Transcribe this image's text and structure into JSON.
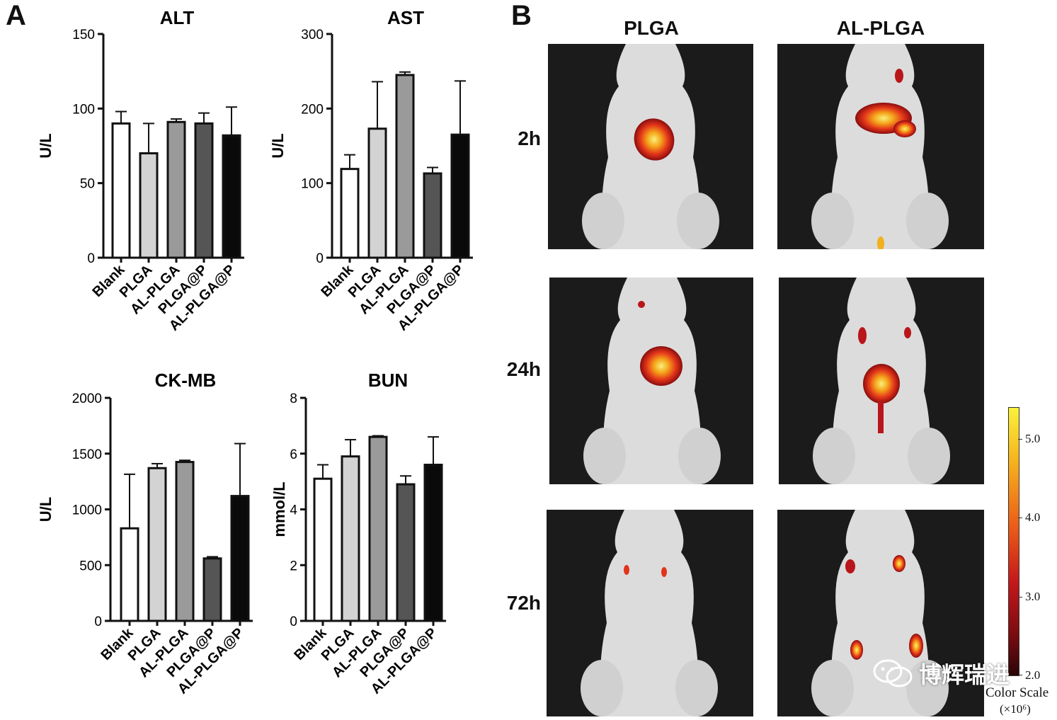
{
  "panel_labels": {
    "a": "A",
    "b": "B"
  },
  "chart_data": [
    {
      "type": "bar",
      "title": "ALT",
      "ylabel": "U/L",
      "categories": [
        "Blank",
        "PLGA",
        "AL-PLGA",
        "PLGA@P",
        "AL-PLGA@P"
      ],
      "values": [
        90,
        70,
        91,
        90,
        82
      ],
      "errors": [
        8,
        20,
        2,
        7,
        19
      ],
      "ylim": [
        0,
        150
      ],
      "yticks": [
        0,
        50,
        100,
        150
      ]
    },
    {
      "type": "bar",
      "title": "AST",
      "ylabel": "U/L",
      "categories": [
        "Blank",
        "PLGA",
        "AL-PLGA",
        "PLGA@P",
        "AL-PLGA@P"
      ],
      "values": [
        119,
        173,
        245,
        113,
        165
      ],
      "errors": [
        19,
        63,
        4,
        8,
        72
      ],
      "ylim": [
        0,
        300
      ],
      "yticks": [
        0,
        100,
        200,
        300
      ]
    },
    {
      "type": "bar",
      "title": "CK-MB",
      "ylabel": "U/L",
      "categories": [
        "Blank",
        "PLGA",
        "AL-PLGA",
        "PLGA@P",
        "AL-PLGA@P"
      ],
      "values": [
        830,
        1370,
        1425,
        560,
        1120
      ],
      "errors": [
        485,
        40,
        15,
        15,
        470
      ],
      "ylim": [
        0,
        2000
      ],
      "yticks": [
        0,
        500,
        1000,
        1500,
        2000
      ]
    },
    {
      "type": "bar",
      "title": "BUN",
      "ylabel": "mmol/L",
      "categories": [
        "Blank",
        "PLGA",
        "AL-PLGA",
        "PLGA@P",
        "AL-PLGA@P"
      ],
      "values": [
        5.1,
        5.9,
        6.6,
        4.9,
        5.6
      ],
      "errors": [
        0.5,
        0.6,
        0.04,
        0.3,
        1.0
      ],
      "ylim": [
        0,
        8
      ],
      "yticks": [
        0,
        2,
        4,
        6,
        8
      ]
    }
  ],
  "bar_colors": [
    "#ffffff",
    "#d3d3d3",
    "#9a9a9a",
    "#555555",
    "#0a0a0a"
  ],
  "imaging": {
    "columns": [
      "PLGA",
      "AL-PLGA"
    ],
    "rows": [
      "2h",
      "24h",
      "72h"
    ]
  },
  "color_scale": {
    "title": "Color Scale",
    "unit": "(×10⁶)",
    "ticks": [
      "5.0",
      "4.0",
      "3.0",
      "2.0"
    ]
  },
  "watermark": "博辉瑞进"
}
